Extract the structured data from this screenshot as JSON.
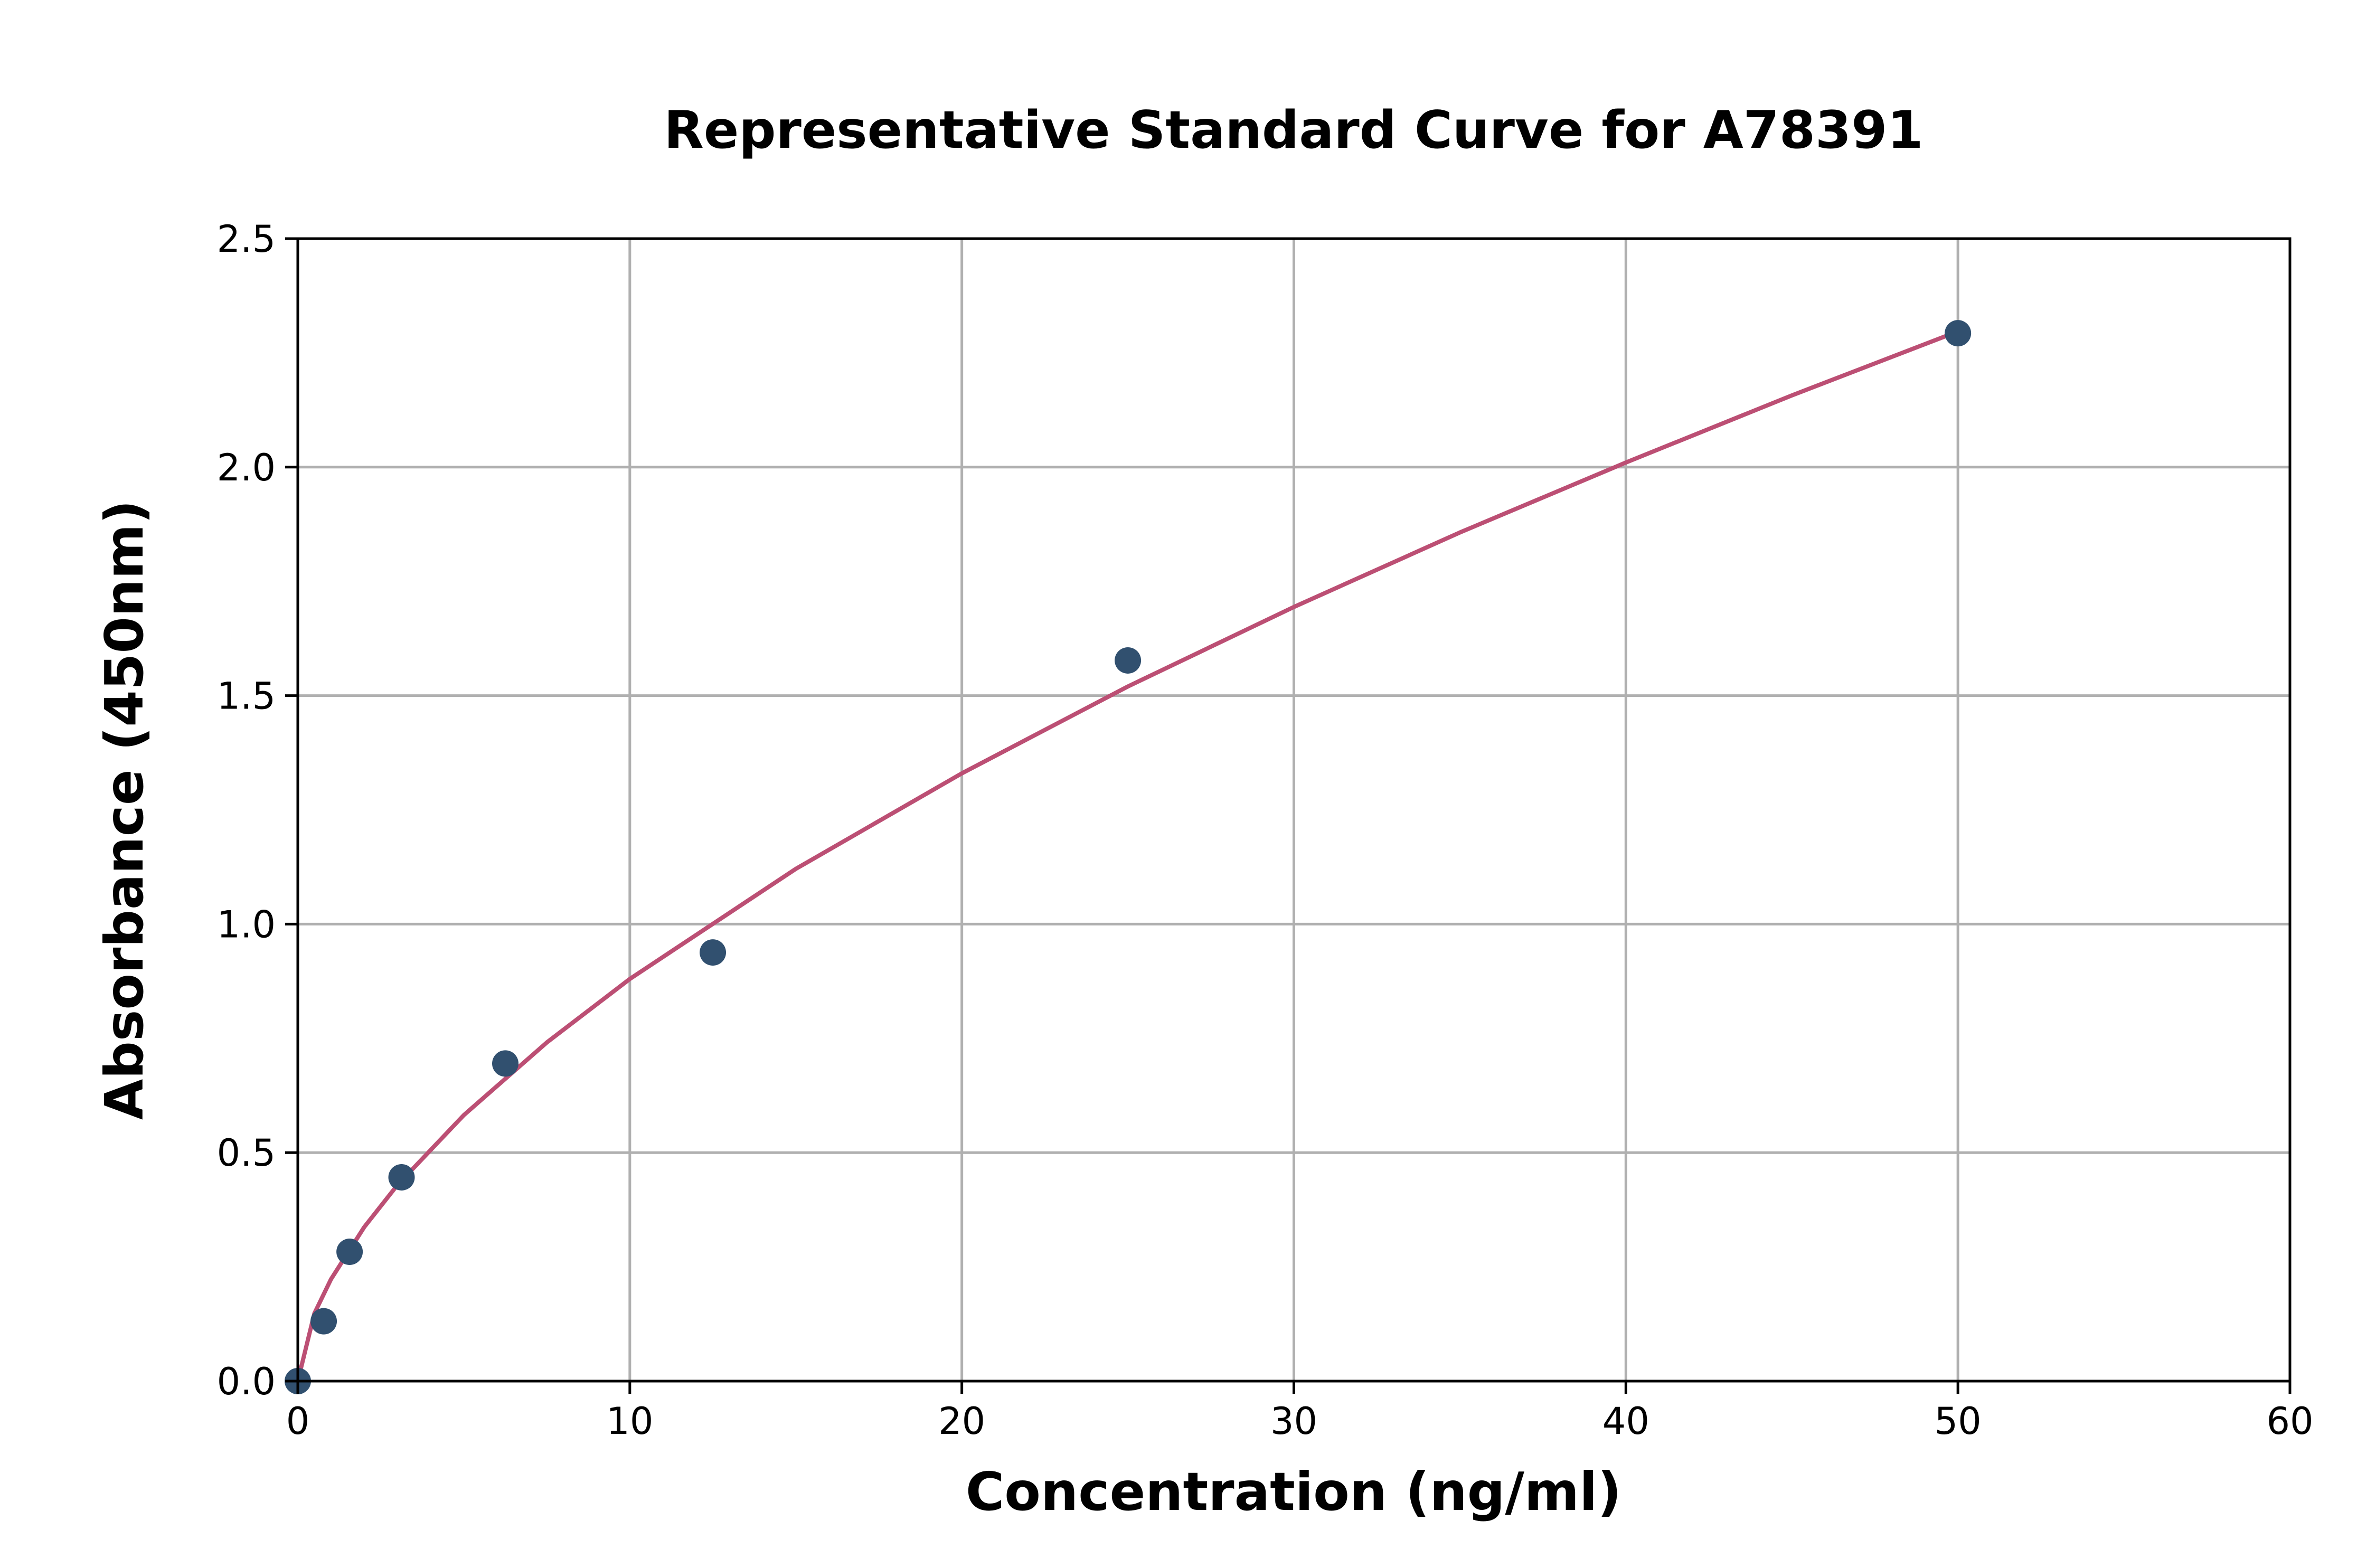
{
  "chart_data": {
    "type": "scatter",
    "title": "Representative Standard Curve for A78391",
    "xlabel": "Concentration (ng/ml)",
    "ylabel": "Absorbance (450nm)",
    "xlim": [
      0,
      60
    ],
    "ylim": [
      0,
      2.5
    ],
    "xticks": [
      "0",
      "10",
      "20",
      "30",
      "40",
      "50",
      "60"
    ],
    "yticks": [
      "0.0",
      "0.5",
      "1.0",
      "1.5",
      "2.0",
      "2.5"
    ],
    "grid": true,
    "points": {
      "x": [
        0,
        0.78,
        1.56,
        3.125,
        6.25,
        12.5,
        25,
        50
      ],
      "y": [
        0.0,
        0.131,
        0.283,
        0.446,
        0.695,
        0.938,
        1.577,
        2.293
      ],
      "color": "#31506f"
    },
    "fit_curve": {
      "x": [
        0,
        0.5,
        1,
        2,
        3,
        5,
        7.5,
        10,
        15,
        20,
        25,
        30,
        35,
        40,
        45,
        50
      ],
      "y": [
        0,
        0.148,
        0.223,
        0.337,
        0.429,
        0.582,
        0.741,
        0.88,
        1.121,
        1.33,
        1.52,
        1.694,
        1.857,
        2.01,
        2.157,
        2.297
      ],
      "color": "#bc4f74"
    }
  }
}
